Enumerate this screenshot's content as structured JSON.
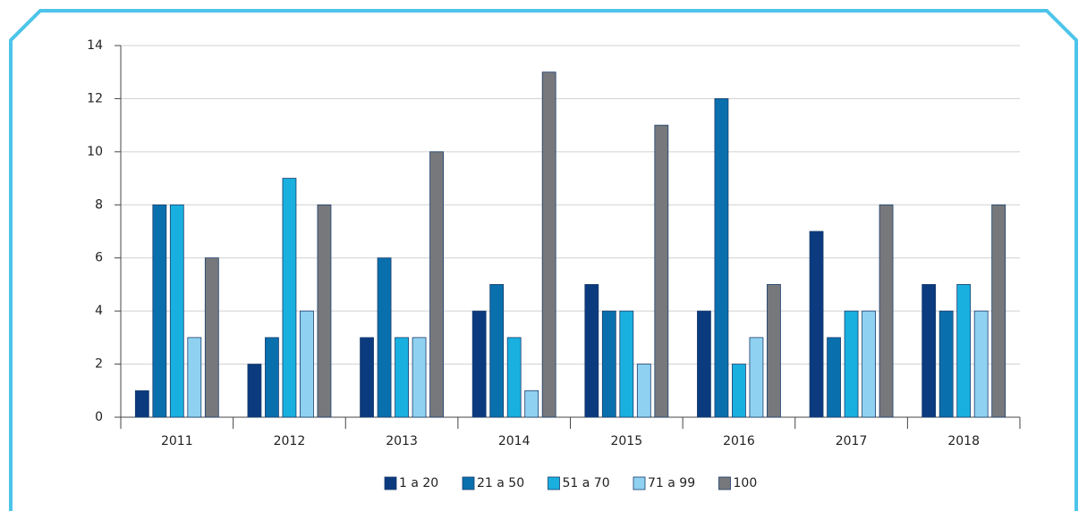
{
  "chart_data": {
    "type": "bar",
    "categories": [
      "2011",
      "2012",
      "2013",
      "2014",
      "2015",
      "2016",
      "2017",
      "2018"
    ],
    "series": [
      {
        "name": "1 a 20",
        "color": "#0b3a7e",
        "values": [
          1,
          2,
          3,
          4,
          5,
          4,
          7,
          5
        ]
      },
      {
        "name": "21 a 50",
        "color": "#0a70ad",
        "values": [
          8,
          3,
          6,
          5,
          4,
          12,
          3,
          4
        ]
      },
      {
        "name": "51 a 70",
        "color": "#19b0e0",
        "values": [
          8,
          9,
          3,
          3,
          4,
          2,
          4,
          5
        ]
      },
      {
        "name": "71 a 99",
        "color": "#8fd1f1",
        "values": [
          3,
          4,
          3,
          1,
          2,
          3,
          4,
          4
        ]
      },
      {
        "name": "100",
        "color": "#77787b",
        "values": [
          6,
          8,
          10,
          13,
          11,
          5,
          8,
          8
        ]
      }
    ],
    "ylim": [
      0,
      14
    ],
    "yticks": [
      0,
      2,
      4,
      6,
      8,
      10,
      12,
      14
    ],
    "grid": true,
    "legend": "bottom"
  }
}
